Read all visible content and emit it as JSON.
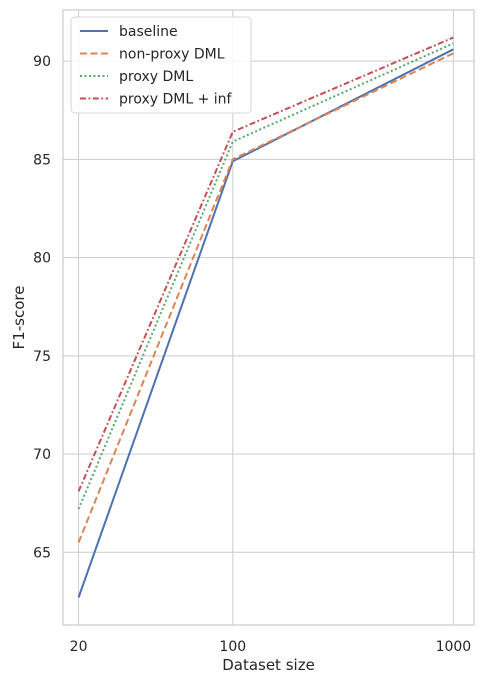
{
  "chart_data": {
    "type": "line",
    "title": "",
    "xlabel": "Dataset size",
    "ylabel": "F1-score",
    "x_scale": "log",
    "x": [
      20,
      100,
      1000
    ],
    "x_tick_labels": [
      "20",
      "100",
      "1000"
    ],
    "xlim": [
      17,
      1240
    ],
    "ylim": [
      61.3,
      92.6
    ],
    "y_ticks": [
      65,
      70,
      75,
      80,
      85,
      90
    ],
    "grid": true,
    "legend_position": "top-left",
    "series": [
      {
        "name": "baseline",
        "values": [
          62.7,
          84.9,
          90.6
        ],
        "color": "#4c72b0",
        "style": "solid"
      },
      {
        "name": "non-proxy DML",
        "values": [
          65.5,
          85.0,
          90.4
        ],
        "color": "#dd8452",
        "style": "dashed"
      },
      {
        "name": "proxy DML",
        "values": [
          67.2,
          85.9,
          90.9
        ],
        "color": "#55a868",
        "style": "dotted"
      },
      {
        "name": "proxy DML + inf",
        "values": [
          68.1,
          86.4,
          91.2
        ],
        "color": "#c44e52",
        "style": "dashdot"
      }
    ]
  }
}
